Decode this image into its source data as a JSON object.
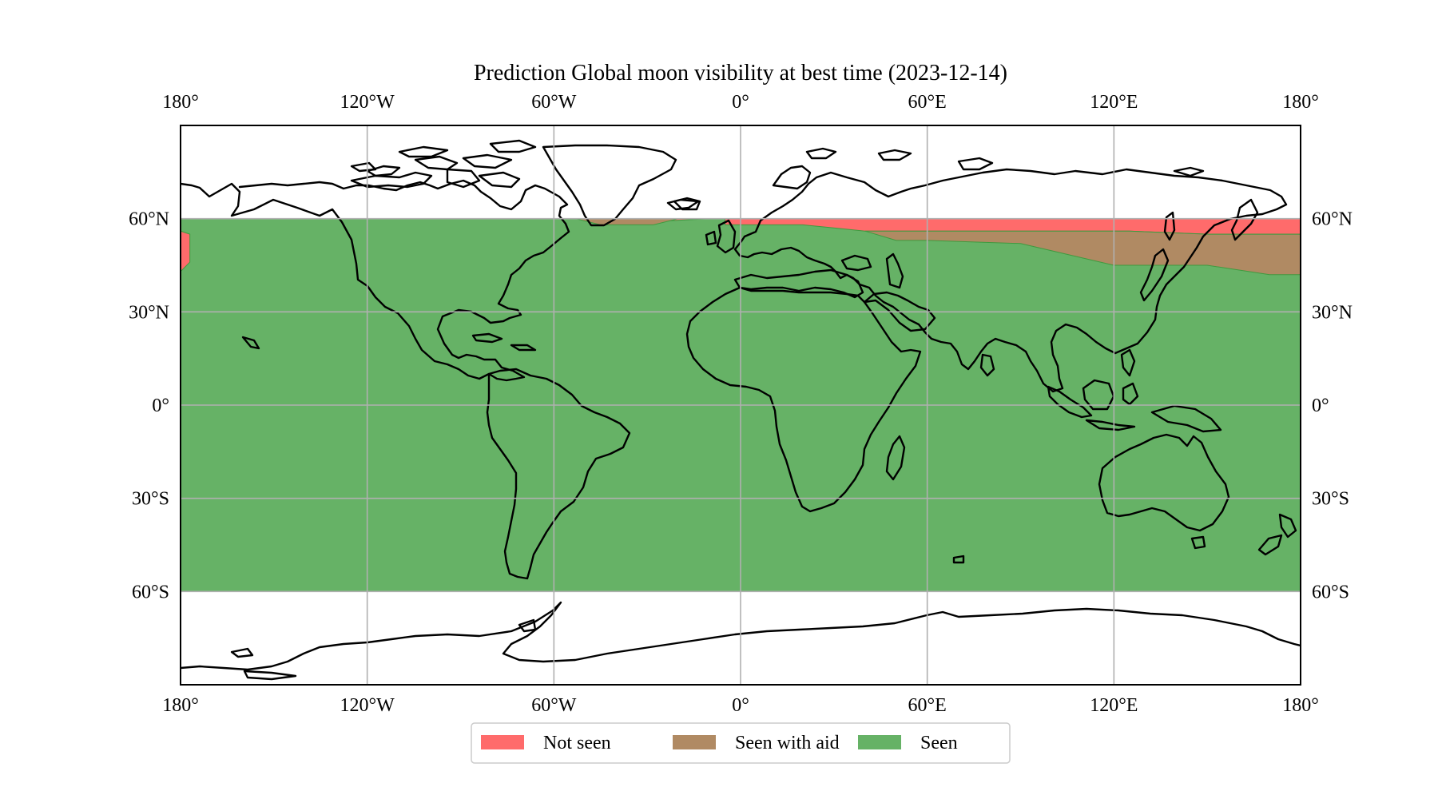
{
  "title": "Prediction Global moon visibility at best time (2023-12-14)",
  "x_ticks": [
    {
      "lon": -180,
      "label": "180°"
    },
    {
      "lon": -120,
      "label": "120°W"
    },
    {
      "lon": -60,
      "label": "60°W"
    },
    {
      "lon": 0,
      "label": "0°"
    },
    {
      "lon": 60,
      "label": "60°E"
    },
    {
      "lon": 120,
      "label": "120°E"
    },
    {
      "lon": 180,
      "label": "180°"
    }
  ],
  "y_ticks": [
    {
      "lat": 60,
      "label": "60°N"
    },
    {
      "lat": 30,
      "label": "30°N"
    },
    {
      "lat": 0,
      "label": "0°"
    },
    {
      "lat": -30,
      "label": "30°S"
    },
    {
      "lat": -60,
      "label": "60°S"
    }
  ],
  "legend": [
    {
      "label": "Not seen",
      "color": "#ff6b6b"
    },
    {
      "label": "Seen with aid",
      "color": "#b08a63"
    },
    {
      "label": "Seen",
      "color": "#66b266"
    }
  ],
  "chart_data": {
    "type": "heatmap",
    "projection": "plate-carree",
    "extent": {
      "lon": [
        -180,
        180
      ],
      "lat": [
        -90,
        90
      ]
    },
    "shaded_lat_range": [
      -60,
      60
    ],
    "grid": true,
    "legend_placement": "bottom-center",
    "categories": [
      "Not seen",
      "Seen with aid",
      "Seen"
    ],
    "regions": [
      {
        "category": "Seen",
        "polygon": [
          [
            -180,
            60
          ],
          [
            180,
            60
          ],
          [
            180,
            -60
          ],
          [
            -180,
            -60
          ]
        ]
      },
      {
        "category": "Not seen",
        "polygon": [
          [
            -177,
            55
          ],
          [
            -180,
            56
          ],
          [
            -180,
            43
          ],
          [
            -177,
            46
          ]
        ]
      },
      {
        "category": "Not seen",
        "polygon": [
          [
            -5,
            60
          ],
          [
            180,
            60
          ],
          [
            180,
            55
          ],
          [
            170,
            55
          ],
          [
            155,
            55
          ],
          [
            150,
            55
          ],
          [
            125,
            56
          ],
          [
            90,
            56
          ],
          [
            70,
            56
          ],
          [
            55,
            56
          ],
          [
            40,
            56
          ],
          [
            30,
            57
          ],
          [
            20,
            58
          ],
          [
            -5,
            58
          ]
        ]
      },
      {
        "category": "Seen with aid",
        "polygon": [
          [
            40,
            56
          ],
          [
            55,
            56
          ],
          [
            70,
            56
          ],
          [
            90,
            56
          ],
          [
            125,
            56
          ],
          [
            150,
            55
          ],
          [
            155,
            55
          ],
          [
            180,
            55
          ],
          [
            180,
            42
          ],
          [
            170,
            42
          ],
          [
            150,
            45
          ],
          [
            120,
            45
          ],
          [
            90,
            52
          ],
          [
            60,
            53
          ],
          [
            50,
            53
          ]
        ]
      },
      {
        "category": "Not seen",
        "polygon": [
          [
            -47,
            59
          ],
          [
            -40,
            60
          ],
          [
            -10,
            60
          ],
          [
            -30,
            59
          ]
        ]
      },
      {
        "category": "Seen with aid",
        "polygon": [
          [
            -53,
            60
          ],
          [
            -45,
            58
          ],
          [
            -28,
            58
          ],
          [
            -20,
            60
          ]
        ]
      }
    ]
  }
}
